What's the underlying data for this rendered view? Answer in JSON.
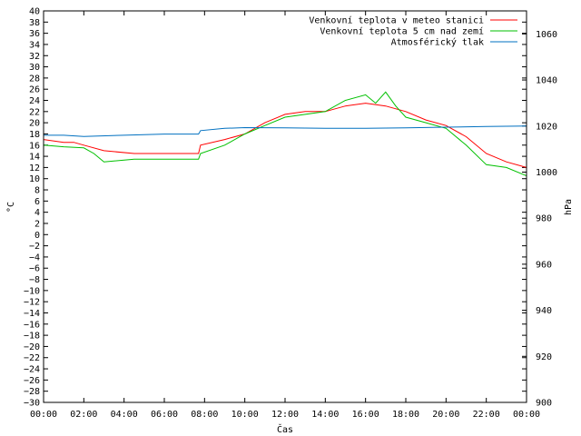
{
  "chart_data": {
    "type": "line",
    "xlabel": "Čas",
    "ylabel": "°C",
    "y2label": "hPa",
    "ylim": [
      -30,
      40
    ],
    "y2lim": [
      900,
      1070
    ],
    "xlim": [
      0,
      24
    ],
    "x_ticks": [
      "00:00",
      "02:00",
      "04:00",
      "06:00",
      "08:00",
      "10:00",
      "12:00",
      "14:00",
      "16:00",
      "18:00",
      "20:00",
      "22:00",
      "00:00"
    ],
    "y_ticks": [
      "40",
      "38",
      "36",
      "34",
      "32",
      "30",
      "28",
      "26",
      "24",
      "22",
      "20",
      "18",
      "16",
      "14",
      "12",
      "10",
      "8",
      "6",
      "4",
      "2",
      "0",
      "−2",
      "−4",
      "−6",
      "−8",
      "−10",
      "−12",
      "−14",
      "−16",
      "−18",
      "−20",
      "−22",
      "−24",
      "−26",
      "−28",
      "−30"
    ],
    "y2_ticks": [
      "1060",
      "1040",
      "1020",
      "1000",
      "980",
      "960",
      "940",
      "920",
      "900"
    ],
    "legend_position": "top-right",
    "series": [
      {
        "name": "Venkovní teplota v meteo stanici",
        "color": "#ff0000",
        "axis": "left",
        "x": [
          0,
          1,
          1.5,
          2,
          3,
          4.5,
          7.7,
          7.8,
          9,
          10,
          11,
          12,
          13,
          14,
          15,
          16,
          17,
          18,
          19,
          20,
          21,
          22,
          23,
          24
        ],
        "y": [
          17,
          16.5,
          16.5,
          16,
          15,
          14.5,
          14.5,
          16,
          17,
          18,
          20,
          21.5,
          22,
          22,
          23,
          23.5,
          23,
          22,
          20.5,
          19.5,
          17.5,
          14.5,
          13,
          12
        ]
      },
      {
        "name": "Venkovní teplota 5 cm nad zemí",
        "color": "#00c000",
        "axis": "left",
        "x": [
          0,
          1,
          2,
          2.5,
          3,
          4.5,
          7.7,
          7.8,
          9,
          10,
          11,
          12,
          13,
          14,
          15,
          16,
          16.5,
          17,
          17.5,
          18,
          19,
          20,
          21,
          22,
          23,
          24
        ],
        "y": [
          16,
          15.7,
          15.5,
          14.5,
          13,
          13.5,
          13.5,
          14.5,
          16,
          18,
          19.5,
          21,
          21.5,
          22,
          24,
          25,
          23.5,
          25.5,
          23,
          21,
          20,
          19,
          16,
          12.5,
          12,
          10.5
        ]
      },
      {
        "name": "Atmosférický tlak",
        "color": "#0070c0",
        "axis": "right",
        "x": [
          0,
          1,
          2,
          4,
          6,
          7.7,
          7.8,
          9,
          10,
          12,
          14,
          16,
          18,
          20,
          22,
          24
        ],
        "y": [
          1016,
          1016,
          1015.5,
          1016,
          1016.5,
          1016.5,
          1018,
          1019,
          1019.3,
          1019.2,
          1019,
          1019,
          1019.2,
          1019.5,
          1019.8,
          1020
        ]
      }
    ]
  }
}
